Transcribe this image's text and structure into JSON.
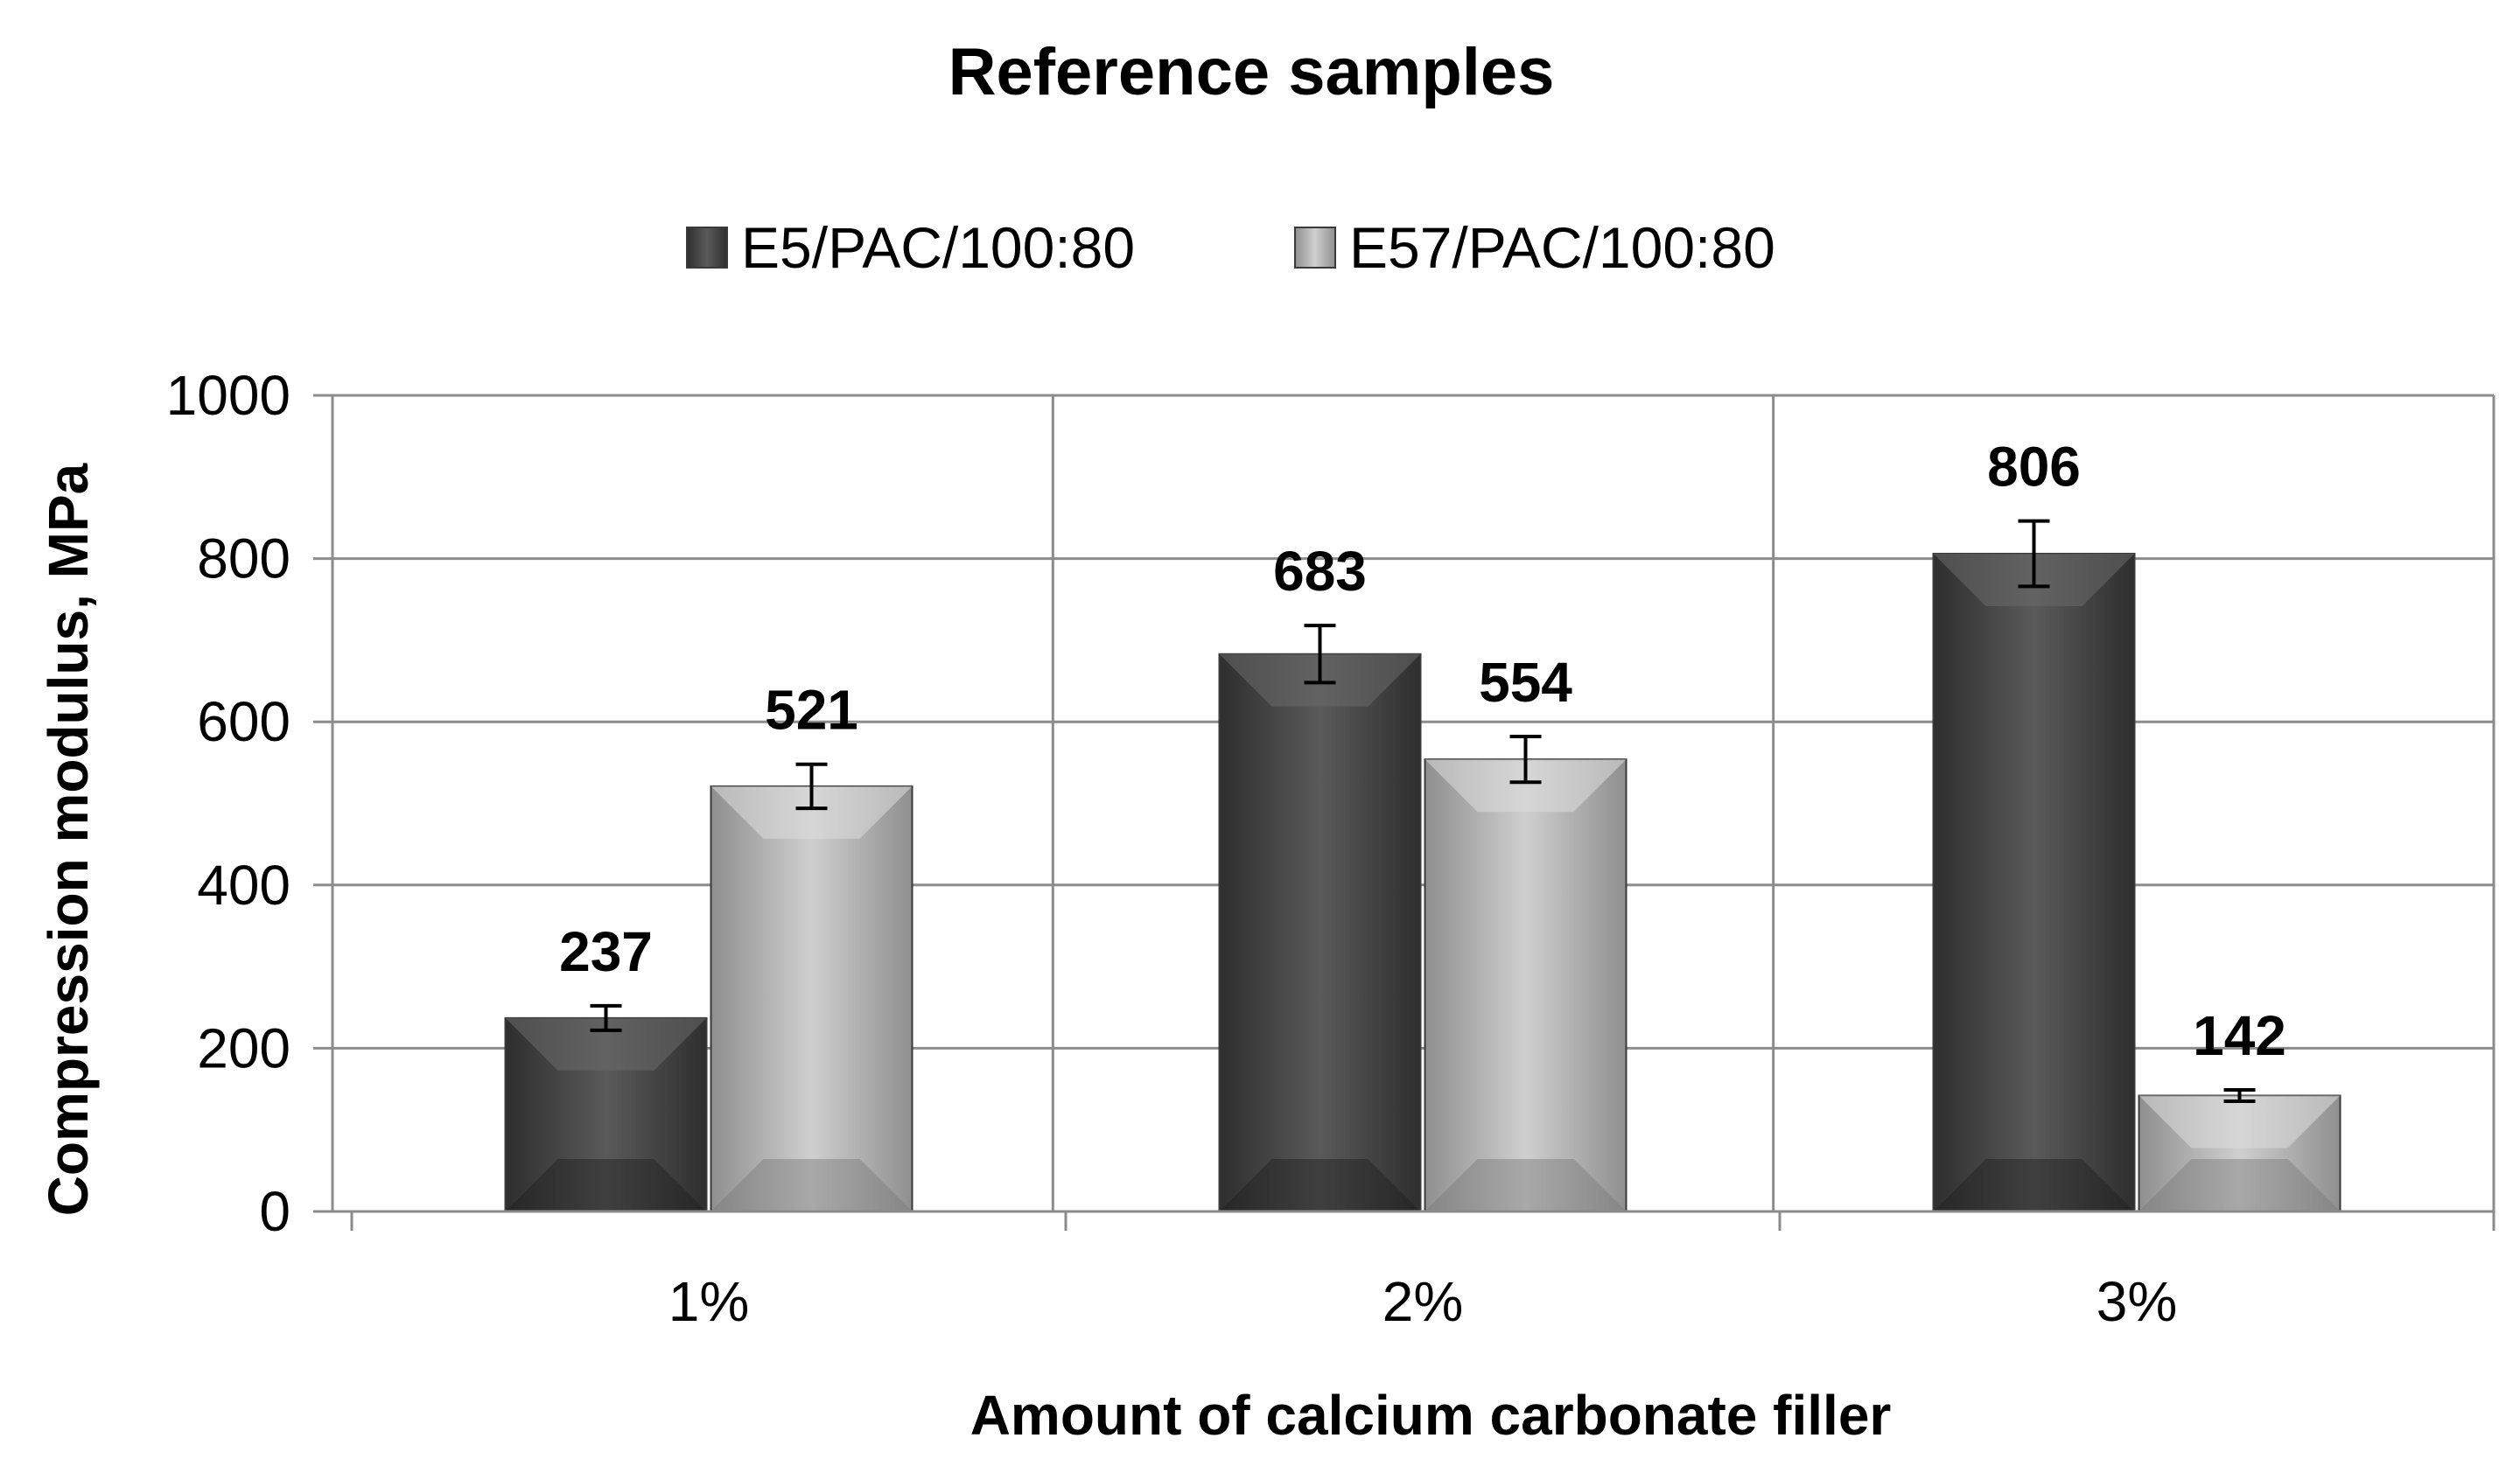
{
  "chart_data": {
    "type": "bar",
    "title": "Reference samples",
    "xlabel": "Amount of calcium carbonate filler",
    "ylabel": "Compression modulus, MPa",
    "categories": [
      "1%",
      "2%",
      "3%"
    ],
    "ylim": [
      0,
      1000
    ],
    "yticks": [
      0,
      200,
      400,
      600,
      800,
      1000
    ],
    "grid": true,
    "legend_position": "top",
    "series": [
      {
        "name": "E5/PAC/100:80",
        "color": "#4a4a4a",
        "values": [
          237,
          683,
          806
        ],
        "errors": [
          15,
          35,
          40
        ],
        "labels": [
          "237",
          "683",
          "806"
        ]
      },
      {
        "name": "E57/PAC/100:80",
        "color": "#b4b4b4",
        "values": [
          521,
          554,
          142
        ],
        "errors": [
          27,
          28,
          7
        ],
        "labels": [
          "521",
          "554",
          "142"
        ]
      }
    ]
  }
}
